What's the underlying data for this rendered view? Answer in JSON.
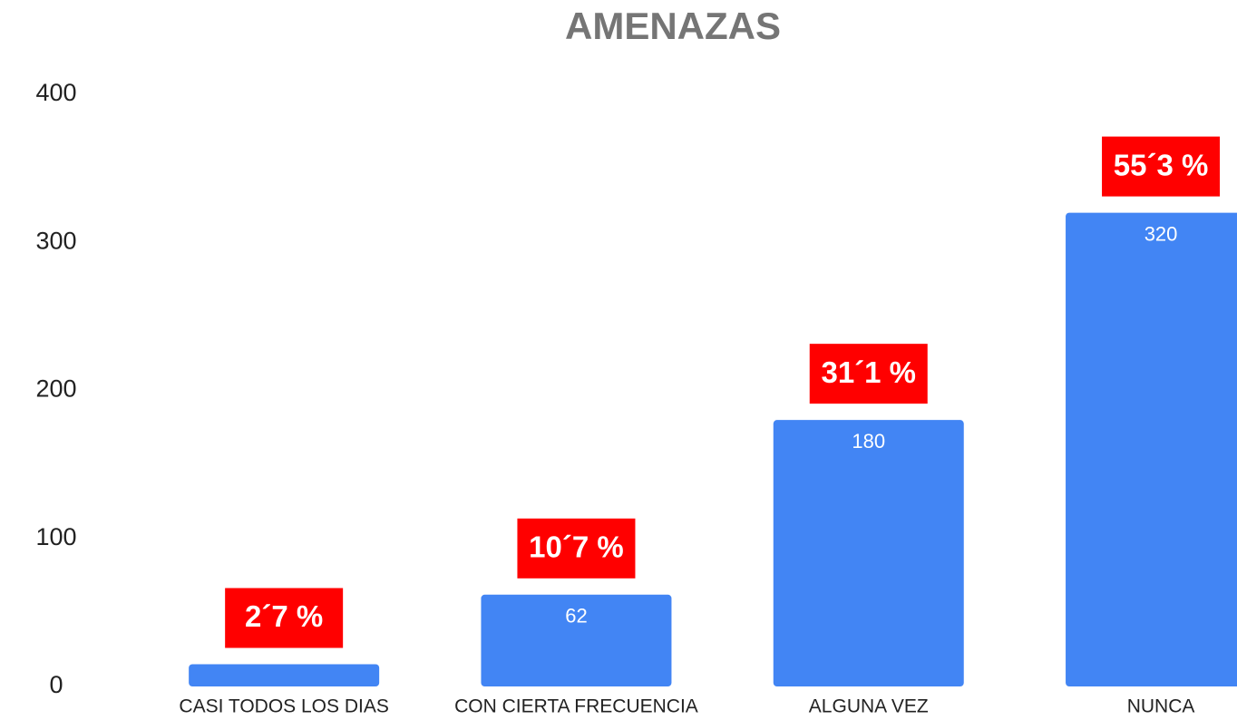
{
  "chart_data": {
    "type": "bar",
    "title": "AMENAZAS",
    "categories": [
      "CASI TODOS LOS DIAS",
      "CON CIERTA FRECUENCIA",
      "ALGUNA VEZ",
      "NUNCA"
    ],
    "values": [
      15,
      62,
      180,
      320
    ],
    "value_labels": [
      null,
      "62",
      "180",
      "320"
    ],
    "annotations": [
      "2´7 %",
      "10´7 %",
      "31´1 %",
      "55´3 %"
    ],
    "color": "#4285f4",
    "annotation_color": "#ff0000",
    "ylim": [
      0,
      400
    ],
    "yticks": [
      0,
      100,
      200,
      300,
      400
    ],
    "grid": false
  }
}
